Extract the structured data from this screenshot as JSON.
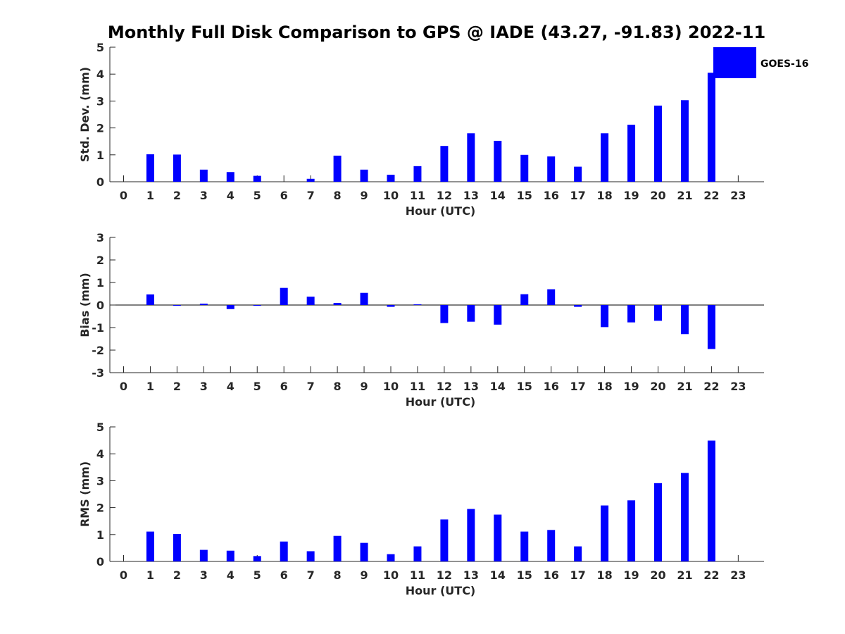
{
  "title": "Monthly Full Disk Comparison to GPS @ IADE (43.27, -91.83) 2022-11",
  "legend": {
    "label": "GOES-16",
    "color": "#0000ff",
    "placement": "top-right"
  },
  "chart_data": [
    {
      "type": "bar",
      "name": "std-dev",
      "ylabel": "Std. Dev. (mm)",
      "xlabel": "Hour (UTC)",
      "ylim": [
        0,
        5
      ],
      "yticks": [
        0,
        1,
        2,
        3,
        4,
        5
      ],
      "categories": [
        "0",
        "1",
        "2",
        "3",
        "4",
        "5",
        "6",
        "7",
        "8",
        "9",
        "10",
        "11",
        "12",
        "13",
        "14",
        "15",
        "16",
        "17",
        "18",
        "19",
        "20",
        "21",
        "22",
        "23"
      ],
      "values": [
        null,
        1.02,
        1.01,
        0.45,
        0.36,
        0.22,
        null,
        0.11,
        0.97,
        0.45,
        0.26,
        0.58,
        1.33,
        1.8,
        1.52,
        1.0,
        0.94,
        0.56,
        1.8,
        2.12,
        2.83,
        3.03,
        4.05,
        null
      ],
      "series_color": "#0000ff"
    },
    {
      "type": "bar",
      "name": "bias",
      "ylabel": "Bias (mm)",
      "xlabel": "Hour (UTC)",
      "ylim": [
        -3,
        3
      ],
      "yticks": [
        -3,
        -2,
        -1,
        0,
        1,
        2,
        3
      ],
      "categories": [
        "0",
        "1",
        "2",
        "3",
        "4",
        "5",
        "6",
        "7",
        "8",
        "9",
        "10",
        "11",
        "12",
        "13",
        "14",
        "15",
        "16",
        "17",
        "18",
        "19",
        "20",
        "21",
        "22",
        "23"
      ],
      "values": [
        null,
        0.47,
        -0.02,
        0.06,
        -0.18,
        -0.01,
        0.76,
        0.37,
        0.09,
        0.54,
        -0.08,
        0.03,
        -0.8,
        -0.74,
        -0.87,
        0.48,
        0.7,
        -0.08,
        -0.98,
        -0.77,
        -0.7,
        -1.29,
        -1.95,
        null
      ],
      "series_color": "#0000ff"
    },
    {
      "type": "bar",
      "name": "rms",
      "ylabel": "RMS (mm)",
      "xlabel": "Hour (UTC)",
      "ylim": [
        0,
        5
      ],
      "yticks": [
        0,
        1,
        2,
        3,
        4,
        5
      ],
      "categories": [
        "0",
        "1",
        "2",
        "3",
        "4",
        "5",
        "6",
        "7",
        "8",
        "9",
        "10",
        "11",
        "12",
        "13",
        "14",
        "15",
        "16",
        "17",
        "18",
        "19",
        "20",
        "21",
        "22",
        "23"
      ],
      "values": [
        null,
        1.11,
        1.02,
        0.43,
        0.4,
        0.2,
        0.74,
        0.38,
        0.95,
        0.69,
        0.27,
        0.56,
        1.56,
        1.95,
        1.74,
        1.11,
        1.17,
        0.56,
        2.08,
        2.27,
        2.91,
        3.29,
        4.49,
        null
      ],
      "series_color": "#0000ff"
    }
  ]
}
